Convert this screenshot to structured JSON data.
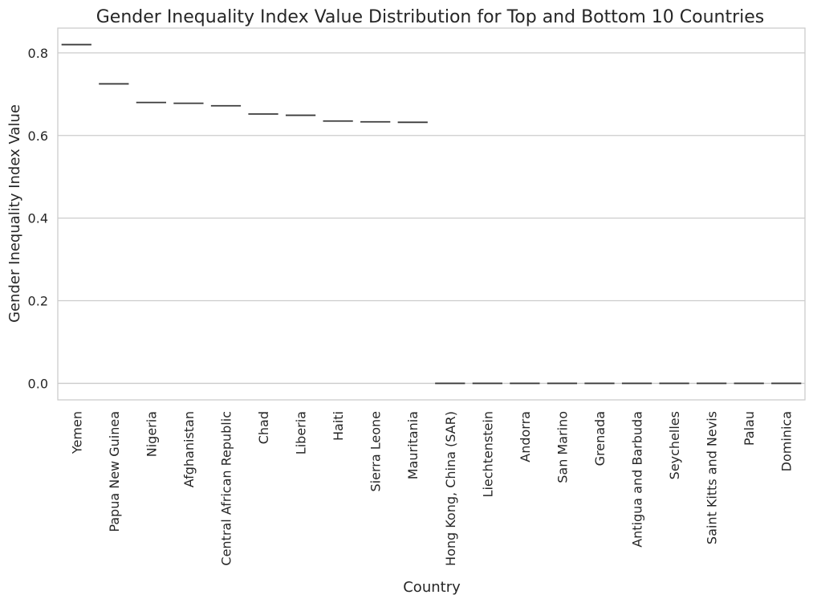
{
  "chart_data": {
    "type": "box",
    "title": "Gender Inequality Index Value Distribution for Top and Bottom 10 Countries",
    "xlabel": "Country",
    "ylabel": "Gender Inequality Index Value",
    "ylim": [
      -0.04,
      0.86
    ],
    "yticks": [
      "0.0",
      "0.2",
      "0.4",
      "0.6",
      "0.8"
    ],
    "grid": true,
    "categories": [
      "Yemen",
      "Papua New Guinea",
      "Nigeria",
      "Afghanistan",
      "Central African Republic",
      "Chad",
      "Liberia",
      "Haiti",
      "Sierra Leone",
      "Mauritania",
      "Hong Kong, China (SAR)",
      "Liechtenstein",
      "Andorra",
      "San Marino",
      "Grenada",
      "Antigua and Barbuda",
      "Seychelles",
      "Saint Kitts and Nevis",
      "Palau",
      "Dominica"
    ],
    "values": [
      0.82,
      0.725,
      0.68,
      0.678,
      0.672,
      0.652,
      0.649,
      0.635,
      0.633,
      0.632,
      0.0,
      0.0,
      0.0,
      0.0,
      0.0,
      0.0,
      0.0,
      0.0,
      0.0,
      0.0
    ]
  }
}
